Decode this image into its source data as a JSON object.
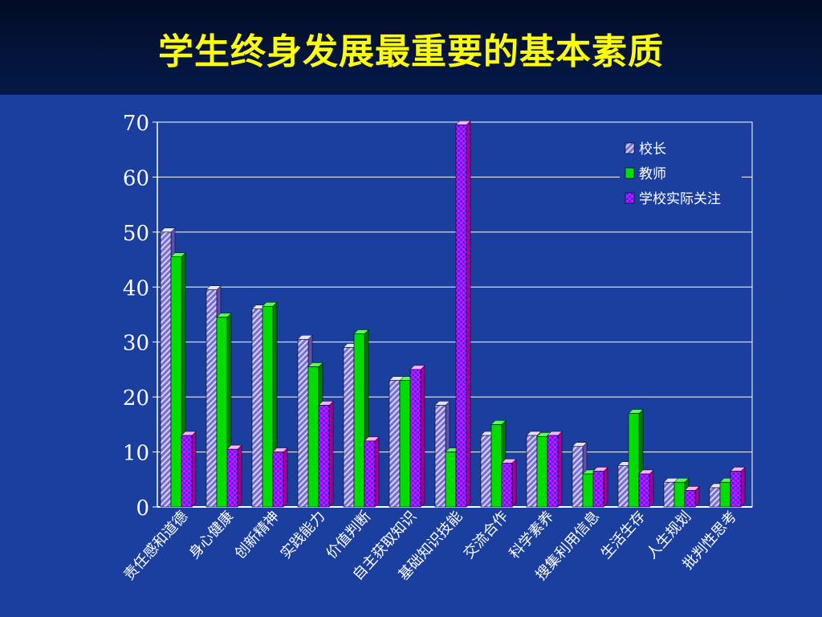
{
  "slide": {
    "title": "学生终身发展最重要的基本素质"
  },
  "chart_data": {
    "type": "bar",
    "title": "",
    "xlabel": "",
    "ylabel": "",
    "ylim": [
      0,
      70
    ],
    "yticks": [
      0,
      10,
      20,
      30,
      40,
      50,
      60,
      70
    ],
    "grid": true,
    "legend": "top-right",
    "categories": [
      "责任感和道德",
      "身心健康",
      "创新精神",
      "实践能力",
      "价值判断",
      "自主获取知识",
      "基础知识技能",
      "交流合作",
      "科学素养",
      "搜集利用信息",
      "生活生存",
      "人生规划",
      "批判性思考"
    ],
    "series": [
      {
        "name": "校长",
        "color": "#7a6fd6",
        "pattern": "diagonal-hatch",
        "values": [
          50,
          39.5,
          36,
          30.5,
          29,
          23,
          18.5,
          13,
          13,
          11,
          7.5,
          4.5,
          3.5
        ]
      },
      {
        "name": "教师",
        "color": "#00e600",
        "pattern": "solid",
        "values": [
          45.5,
          34.5,
          36.5,
          25.5,
          31.5,
          23,
          10,
          15,
          12.8,
          6,
          17,
          4.5,
          4.5
        ]
      },
      {
        "name": "学校实际关注",
        "color": "#ff00ff",
        "pattern": "checker",
        "values": [
          13,
          10.5,
          10,
          18.5,
          12,
          25,
          69.5,
          8,
          13,
          6.5,
          6,
          3,
          6.5
        ]
      }
    ]
  }
}
